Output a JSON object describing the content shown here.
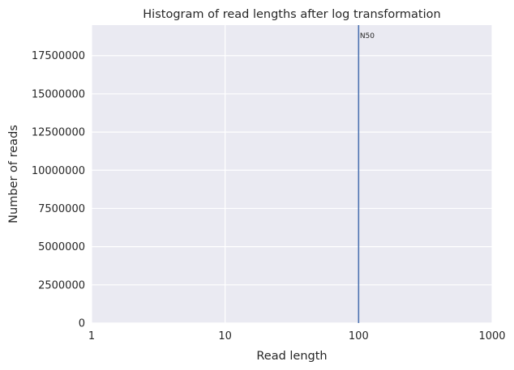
{
  "chart_data": {
    "type": "bar",
    "title": "Histogram of read lengths after log transformation",
    "xlabel": "Read length",
    "ylabel": "Number of reads",
    "x_scale": "log",
    "xlim": [
      1,
      1000
    ],
    "ylim": [
      0,
      19500000
    ],
    "x_ticks": [
      {
        "value": 1,
        "label": "1"
      },
      {
        "value": 10,
        "label": "10"
      },
      {
        "value": 100,
        "label": "100"
      },
      {
        "value": 1000,
        "label": "1000"
      }
    ],
    "y_ticks": [
      {
        "value": 0,
        "label": "0"
      },
      {
        "value": 2500000,
        "label": "2500000"
      },
      {
        "value": 5000000,
        "label": "5000000"
      },
      {
        "value": 7500000,
        "label": "7500000"
      },
      {
        "value": 10000000,
        "label": "10000000"
      },
      {
        "value": 12500000,
        "label": "12500000"
      },
      {
        "value": 15000000,
        "label": "15000000"
      },
      {
        "value": 17500000,
        "label": "17500000"
      }
    ],
    "bars": [],
    "annotations": [
      {
        "type": "vline",
        "x": 100,
        "label": "N50",
        "color": "#4c72b0"
      }
    ],
    "grid": true,
    "background_color": "#eaeaf2",
    "grid_color": "#ffffff"
  }
}
